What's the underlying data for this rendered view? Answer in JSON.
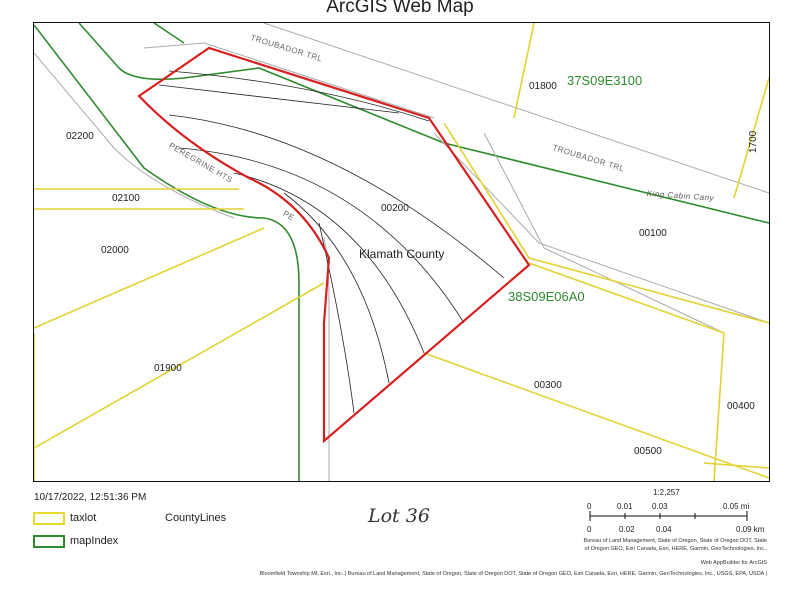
{
  "title": "ArcGIS Web Map",
  "map": {
    "taxlots": [
      "02200",
      "02100",
      "02000",
      "01900",
      "00200",
      "00100",
      "00300",
      "00400",
      "00500",
      "01800",
      "1700"
    ],
    "county_label": "Klamath County",
    "map_index": [
      "37S09E3100",
      "38S09E06A0"
    ],
    "roads": [
      "TROUBADOR TRL",
      "TROUBADOR TRL",
      "PEREGRINE HTS",
      "King Cabin Cany",
      "PE"
    ]
  },
  "footer": {
    "timestamp": "10/17/2022, 12:51:36 PM",
    "legend": [
      {
        "label": "taxlot",
        "color": "#e8d830"
      },
      {
        "label": "mapIndex",
        "color": "#2e8b2e"
      }
    ],
    "county_lines": "CountyLines",
    "handwritten_note": "Lot 36",
    "scale_ratio": "1:2,257",
    "scale_mi": [
      "0",
      "0.01",
      "0.03",
      "0.05 mi"
    ],
    "scale_km": [
      "0",
      "0.02",
      "0.04",
      "0.09 km"
    ],
    "attribution": [
      "Bureau of Land Management, State of Oregon, State of Oregon DOT, State",
      "of Oregon GEO, Esri Canada, Esri, HERE, Garmin, GeoTechnologies, Inc.,",
      "Web AppBuilder for ArcGIS",
      "Bloomfield Township MI, Esri., Inc. | Bureau of Land Management, State of Oregon, State of Oregon DOT, State of Oregon GEO, Esri Canada, Esri, HERE, Garmin, GeoTechnologies, Inc., USGS, EPA, USDA |"
    ]
  }
}
